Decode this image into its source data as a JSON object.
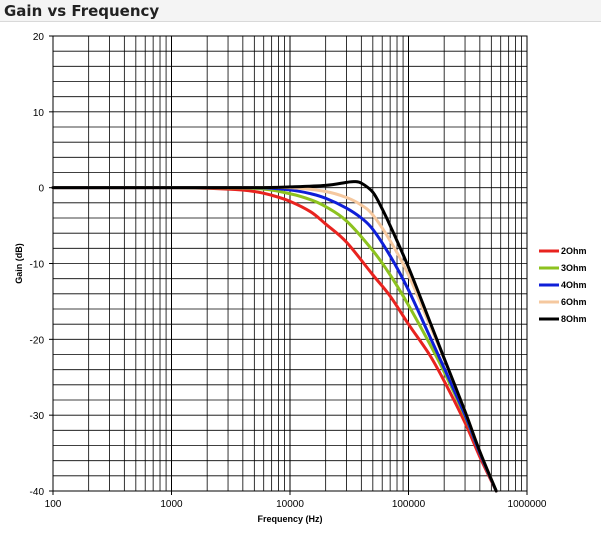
{
  "header": {
    "title": "Gain vs Frequency"
  },
  "chart_data": {
    "type": "line",
    "title": "Gain vs Frequency",
    "xlabel": "Frequency (Hz)",
    "ylabel": "Gain (dB)",
    "xscale": "log",
    "xlim": [
      100,
      1000000
    ],
    "ylim": [
      -40,
      20
    ],
    "x_ticks": [
      100,
      1000,
      10000,
      100000,
      1000000
    ],
    "x_tick_labels": [
      "100",
      "1000",
      "10000",
      "100000",
      "1000000"
    ],
    "y_ticks": [
      20,
      10,
      0,
      -10,
      -20,
      -30,
      -40
    ],
    "y_tick_labels": [
      "20",
      "10",
      "0",
      "-10",
      "-20",
      "-30",
      "-40"
    ],
    "grid": true,
    "legend_position": "right",
    "series": [
      {
        "name": "2Ohm",
        "color": "#e8231f",
        "x": [
          100,
          1000,
          3000,
          5000,
          7000,
          10000,
          15000,
          20000,
          30000,
          50000,
          70000,
          100000,
          150000,
          200000,
          300000,
          400000,
          550000
        ],
        "y": [
          0,
          0,
          -0.2,
          -0.5,
          -1.0,
          -1.8,
          -3.2,
          -4.8,
          -7.2,
          -11.5,
          -14.3,
          -18.0,
          -22.0,
          -25.5,
          -31.0,
          -35.5,
          -40.0
        ]
      },
      {
        "name": "3Ohm",
        "color": "#8dc21f",
        "x": [
          100,
          1000,
          5000,
          10000,
          15000,
          20000,
          30000,
          50000,
          70000,
          100000,
          150000,
          200000,
          300000,
          400000,
          550000
        ],
        "y": [
          0,
          0,
          -0.1,
          -0.8,
          -1.6,
          -2.5,
          -4.4,
          -8.3,
          -11.5,
          -15.5,
          -20.5,
          -24.3,
          -30.2,
          -35.0,
          -40.0
        ]
      },
      {
        "name": "4Ohm",
        "color": "#0f1fd8",
        "x": [
          100,
          1000,
          5000,
          10000,
          15000,
          20000,
          30000,
          40000,
          50000,
          70000,
          100000,
          150000,
          200000,
          300000,
          400000,
          550000
        ],
        "y": [
          0,
          0,
          0,
          -0.3,
          -0.8,
          -1.4,
          -2.7,
          -4.0,
          -5.5,
          -9.0,
          -13.5,
          -19.5,
          -23.8,
          -30.0,
          -35.0,
          -40.0
        ]
      },
      {
        "name": "6Ohm",
        "color": "#f5c89f",
        "x": [
          100,
          1000,
          5000,
          10000,
          20000,
          30000,
          40000,
          50000,
          70000,
          100000,
          150000,
          200000,
          300000,
          400000,
          550000
        ],
        "y": [
          0,
          0,
          0,
          0,
          -0.5,
          -1.3,
          -2.3,
          -3.6,
          -7.0,
          -11.5,
          -18.0,
          -22.6,
          -29.5,
          -34.8,
          -40.0
        ]
      },
      {
        "name": "8Ohm",
        "color": "#000000",
        "x": [
          100,
          1000,
          5000,
          10000,
          20000,
          30000,
          35000,
          40000,
          50000,
          60000,
          70000,
          100000,
          150000,
          200000,
          300000,
          400000,
          550000
        ],
        "y": [
          0,
          0,
          0,
          0.1,
          0.3,
          0.7,
          0.8,
          0.6,
          -0.6,
          -2.8,
          -5.0,
          -10.5,
          -17.5,
          -22.5,
          -29.5,
          -34.8,
          -40.0
        ]
      }
    ]
  }
}
